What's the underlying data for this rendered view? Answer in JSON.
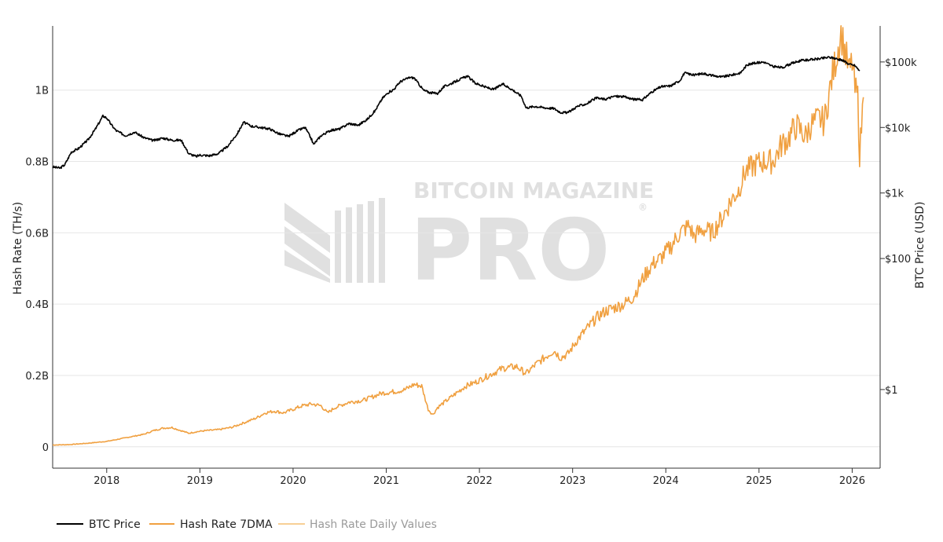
{
  "chart_data": {
    "type": "line",
    "title": "",
    "watermark": {
      "line1": "BITCOIN MAGAZINE",
      "line2": "PRO",
      "reg": "®"
    },
    "x_axis": {
      "range": [
        2017.42,
        2026.3
      ],
      "ticks": [
        "2018",
        "2019",
        "2020",
        "2021",
        "2022",
        "2023",
        "2024",
        "2025",
        "2026"
      ],
      "tick_values": [
        2018,
        2019,
        2020,
        2021,
        2022,
        2023,
        2024,
        2025,
        2026
      ]
    },
    "y_left": {
      "label": "Hash Rate (TH/s)",
      "range": [
        -0.06,
        1.18
      ],
      "ticks": [
        "0",
        "0.2B",
        "0.4B",
        "0.6B",
        "0.8B",
        "1B"
      ],
      "tick_values": [
        0,
        0.2,
        0.4,
        0.6,
        0.8,
        1.0
      ],
      "unit": "billion TH/s"
    },
    "y_right": {
      "label": "BTC Price (USD)",
      "scale": "log",
      "range_log10": [
        -1.2,
        5.55
      ],
      "ticks": [
        "$1",
        "$100",
        "$1k",
        "$10k",
        "$100k"
      ],
      "tick_values": [
        1,
        100,
        1000,
        10000,
        100000
      ]
    },
    "colors": {
      "btc": "#000000",
      "hash7dma": "#f0a040",
      "hashdaily": "#f7cf95",
      "grid": "#e6e6e6",
      "axis": "#333333"
    },
    "series": [
      {
        "name": "BTC Price",
        "axis": "right",
        "x": [
          2017.42,
          2017.5,
          2017.55,
          2017.62,
          2017.7,
          2017.8,
          2017.88,
          2017.96,
          2018.0,
          2018.05,
          2018.1,
          2018.2,
          2018.3,
          2018.4,
          2018.5,
          2018.6,
          2018.7,
          2018.8,
          2018.88,
          2018.96,
          2019.0,
          2019.1,
          2019.2,
          2019.3,
          2019.4,
          2019.47,
          2019.55,
          2019.65,
          2019.75,
          2019.85,
          2019.95,
          2020.05,
          2020.13,
          2020.2,
          2020.22,
          2020.3,
          2020.4,
          2020.5,
          2020.6,
          2020.7,
          2020.8,
          2020.88,
          2020.96,
          2021.02,
          2021.08,
          2021.15,
          2021.25,
          2021.3,
          2021.4,
          2021.47,
          2021.55,
          2021.62,
          2021.7,
          2021.8,
          2021.87,
          2021.95,
          2022.05,
          2022.15,
          2022.25,
          2022.35,
          2022.45,
          2022.5,
          2022.6,
          2022.7,
          2022.8,
          2022.87,
          2022.95,
          2023.05,
          2023.15,
          2023.25,
          2023.35,
          2023.45,
          2023.55,
          2023.65,
          2023.75,
          2023.85,
          2023.95,
          2024.05,
          2024.15,
          2024.2,
          2024.3,
          2024.4,
          2024.5,
          2024.6,
          2024.7,
          2024.8,
          2024.87,
          2024.95,
          2025.05,
          2025.15,
          2025.25,
          2025.35,
          2025.45,
          2025.55,
          2025.65,
          2025.75,
          2025.8,
          2025.9,
          2025.97,
          2026.03,
          2026.08
        ],
        "values": [
          2500,
          2400,
          2700,
          4200,
          4800,
          6500,
          9500,
          15000,
          14000,
          11000,
          9000,
          7500,
          8500,
          7000,
          6300,
          6900,
          6400,
          6400,
          4000,
          3600,
          3800,
          3700,
          4000,
          5200,
          8000,
          12000,
          10500,
          10000,
          9500,
          8000,
          7300,
          9000,
          10000,
          6500,
          5500,
          7500,
          9000,
          9500,
          11500,
          10800,
          13500,
          18000,
          28000,
          34000,
          38000,
          50000,
          58000,
          57000,
          37000,
          34000,
          33000,
          42000,
          47000,
          55000,
          61000,
          48000,
          42000,
          38000,
          46000,
          38000,
          30000,
          20000,
          21000,
          20000,
          19500,
          17000,
          16800,
          21000,
          23000,
          28000,
          27000,
          30000,
          29500,
          27000,
          26500,
          35000,
          42000,
          43000,
          52000,
          68000,
          63000,
          67000,
          62000,
          59000,
          63000,
          68000,
          90000,
          96000,
          100000,
          85000,
          82000,
          95000,
          105000,
          108000,
          112000,
          118000,
          115000,
          105000,
          92000,
          88000,
          73000
        ]
      },
      {
        "name": "Hash Rate 7DMA",
        "axis": "left",
        "x": [
          2017.42,
          2017.6,
          2017.8,
          2018.0,
          2018.2,
          2018.4,
          2018.5,
          2018.6,
          2018.7,
          2018.8,
          2018.88,
          2018.96,
          2019.05,
          2019.2,
          2019.35,
          2019.5,
          2019.6,
          2019.7,
          2019.8,
          2019.9,
          2020.0,
          2020.1,
          2020.2,
          2020.3,
          2020.37,
          2020.45,
          2020.6,
          2020.75,
          2020.85,
          2020.95,
          2021.1,
          2021.2,
          2021.3,
          2021.38,
          2021.45,
          2021.5,
          2021.55,
          2021.65,
          2021.75,
          2021.85,
          2021.95,
          2022.1,
          2022.25,
          2022.4,
          2022.5,
          2022.6,
          2022.7,
          2022.8,
          2022.87,
          2022.95,
          2023.05,
          2023.15,
          2023.25,
          2023.35,
          2023.45,
          2023.55,
          2023.65,
          2023.75,
          2023.85,
          2023.95,
          2024.05,
          2024.15,
          2024.25,
          2024.3,
          2024.4,
          2024.5,
          2024.6,
          2024.7,
          2024.78,
          2024.85,
          2024.95,
          2025.05,
          2025.15,
          2025.25,
          2025.3,
          2025.4,
          2025.5,
          2025.55,
          2025.65,
          2025.7,
          2025.78,
          2025.82,
          2025.88,
          2025.93,
          2025.97,
          2026.0,
          2026.03,
          2026.06,
          2026.08,
          2026.1,
          2026.12
        ],
        "values": [
          0.005,
          0.006,
          0.01,
          0.015,
          0.025,
          0.035,
          0.045,
          0.052,
          0.054,
          0.045,
          0.038,
          0.042,
          0.045,
          0.048,
          0.055,
          0.07,
          0.08,
          0.095,
          0.1,
          0.095,
          0.105,
          0.115,
          0.12,
          0.115,
          0.095,
          0.11,
          0.125,
          0.13,
          0.14,
          0.15,
          0.155,
          0.16,
          0.175,
          0.17,
          0.105,
          0.09,
          0.11,
          0.13,
          0.15,
          0.17,
          0.18,
          0.2,
          0.22,
          0.225,
          0.205,
          0.23,
          0.25,
          0.27,
          0.25,
          0.26,
          0.3,
          0.33,
          0.36,
          0.38,
          0.39,
          0.4,
          0.42,
          0.47,
          0.51,
          0.53,
          0.56,
          0.6,
          0.62,
          0.59,
          0.61,
          0.6,
          0.64,
          0.69,
          0.72,
          0.77,
          0.79,
          0.8,
          0.8,
          0.85,
          0.86,
          0.9,
          0.87,
          0.9,
          0.92,
          0.91,
          1.03,
          1.08,
          1.16,
          1.1,
          1.05,
          1.08,
          1.0,
          0.98,
          0.82,
          0.9,
          0.98
        ]
      },
      {
        "name": "Hash Rate Daily Values",
        "axis": "left",
        "x": [],
        "values": []
      }
    ],
    "legend": {
      "placement": "bottom-left",
      "entries": [
        "BTC Price",
        "Hash Rate 7DMA",
        "Hash Rate Daily Values"
      ]
    }
  }
}
